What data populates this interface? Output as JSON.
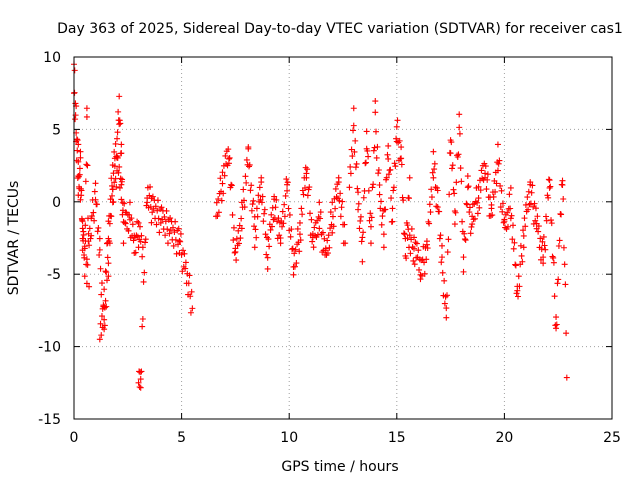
{
  "chart_data": {
    "type": "scatter",
    "title": "Day 363 of 2025, Sidereal Day-to-day VTEC variation (SDTVAR) for receiver cas1",
    "xlabel": "GPS time / hours",
    "ylabel": "SDTVAR / TECUs",
    "xlim": [
      0,
      25
    ],
    "ylim": [
      -15,
      10
    ],
    "xticks": [
      0,
      5,
      10,
      15,
      20,
      25
    ],
    "yticks": [
      -15,
      -10,
      -5,
      0,
      5,
      10
    ],
    "grid": true,
    "marker": "plus",
    "color": "#ff0000",
    "segments": [
      {
        "x": [
          0.0,
          0.2,
          0.4,
          0.6,
          0.8,
          1.0,
          1.2,
          1.4,
          1.6,
          1.8,
          2.0,
          2.2,
          2.4,
          2.6,
          2.8,
          3.0,
          3.2
        ],
        "y": [
          9.5,
          3.0,
          -2.0,
          -4.5,
          -1.5,
          0.5,
          -3.5,
          -8.8,
          -4.0,
          0.5,
          2.5,
          1.0,
          -1.5,
          -1.0,
          -3.0,
          -2.0,
          -3.5
        ]
      },
      {
        "x": [
          0.0,
          0.1,
          0.2,
          0.3,
          0.4,
          0.5,
          0.6,
          0.7
        ],
        "y": [
          7.5,
          5.0,
          1.0,
          2.5,
          -2.5,
          -4.0,
          5.5,
          -5.5
        ]
      },
      {
        "x": [
          1.2,
          1.4,
          1.6,
          1.8,
          2.0,
          2.1,
          2.2,
          2.3
        ],
        "y": [
          -9.5,
          -7.0,
          -2.0,
          2.0,
          4.0,
          6.5,
          3.0,
          -2.5
        ]
      },
      {
        "x": [
          6.6,
          6.9,
          7.2,
          7.5,
          7.8,
          8.1,
          8.4,
          8.7,
          9.0,
          9.3,
          9.6,
          9.9,
          10.2,
          10.5,
          10.8,
          11.1,
          11.4,
          11.7,
          12.0,
          12.3,
          12.6
        ],
        "y": [
          -1.0,
          1.5,
          3.5,
          -4.0,
          -1.0,
          3.0,
          -2.0,
          1.0,
          -3.5,
          0.0,
          -2.5,
          1.0,
          -4.5,
          -2.0,
          2.5,
          -3.0,
          -1.0,
          -4.0,
          -1.0,
          1.0,
          -2.5
        ]
      },
      {
        "x": [
          12.8,
          13.0,
          13.2,
          13.4,
          13.6,
          13.8,
          14.0,
          14.2,
          14.4,
          14.6,
          14.8,
          15.0,
          15.2,
          15.4,
          15.6
        ],
        "y": [
          1.0,
          5.5,
          0.0,
          -3.0,
          4.5,
          -2.5,
          6.0,
          0.5,
          -2.0,
          3.5,
          -1.0,
          5.0,
          3.0,
          -3.5,
          1.0
        ]
      },
      {
        "x": [
          15.5,
          15.8,
          16.1,
          16.4,
          16.7,
          16.9,
          17.1,
          17.3,
          17.5,
          17.7,
          17.9,
          18.1,
          18.3,
          18.5
        ],
        "y": [
          -2.5,
          -3.0,
          -4.5,
          -3.5,
          2.5,
          0.0,
          -4.0,
          -8.0,
          4.5,
          -1.0,
          5.5,
          -4.0,
          1.0,
          -2.5
        ]
      },
      {
        "x": [
          18.5,
          18.8,
          19.1,
          19.4,
          19.7,
          20.0,
          20.3,
          20.6,
          20.9,
          21.2,
          21.5,
          21.8,
          22.1,
          22.4,
          22.7,
          22.9
        ],
        "y": [
          -1.0,
          0.5,
          2.5,
          -1.0,
          3.0,
          -2.0,
          0.0,
          -6.5,
          -2.0,
          1.0,
          -1.5,
          -4.0,
          1.5,
          -8.5,
          2.0,
          -11.0
        ]
      },
      {
        "x": [
          3.0,
          3.1,
          3.4,
          3.6,
          4.9,
          5.5
        ],
        "y": [
          -12.5,
          -12.0,
          0.8,
          -0.3,
          -2.7,
          -7.0
        ]
      }
    ]
  }
}
